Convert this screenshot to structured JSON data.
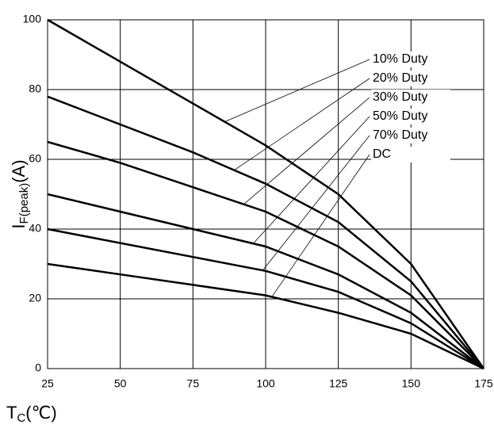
{
  "chart_data": {
    "type": "line",
    "x_label": {
      "main": "T",
      "sub": "C",
      "unit": "(℃)"
    },
    "y_label": {
      "main": "I",
      "sub": "F(peak)",
      "unit": "(A)"
    },
    "x": [
      25,
      50,
      75,
      100,
      125,
      150,
      175
    ],
    "xlim": [
      25,
      175
    ],
    "xticks": [
      25,
      50,
      75,
      100,
      125,
      150,
      175
    ],
    "ylim": [
      0,
      100
    ],
    "yticks": [
      0,
      20,
      40,
      60,
      80,
      100
    ],
    "grid": true,
    "series": [
      {
        "name": "10% Duty",
        "color": "#000000",
        "values": [
          100,
          88,
          76,
          64,
          50,
          30,
          0
        ]
      },
      {
        "name": "20% Duty",
        "color": "#000000",
        "values": [
          78,
          70,
          62,
          53,
          42,
          25,
          0
        ]
      },
      {
        "name": "30% Duty",
        "color": "#000000",
        "values": [
          65,
          59,
          52,
          45,
          35,
          21,
          0
        ]
      },
      {
        "name": "50% Duty",
        "color": "#000000",
        "values": [
          50,
          45,
          40,
          35,
          27,
          16,
          0
        ]
      },
      {
        "name": "70% Duty",
        "color": "#000000",
        "values": [
          40,
          36,
          32,
          28,
          22,
          13,
          0
        ]
      },
      {
        "name": "DC",
        "color": "#000000",
        "values": [
          30,
          27,
          24,
          21,
          16,
          10,
          0
        ]
      }
    ]
  }
}
